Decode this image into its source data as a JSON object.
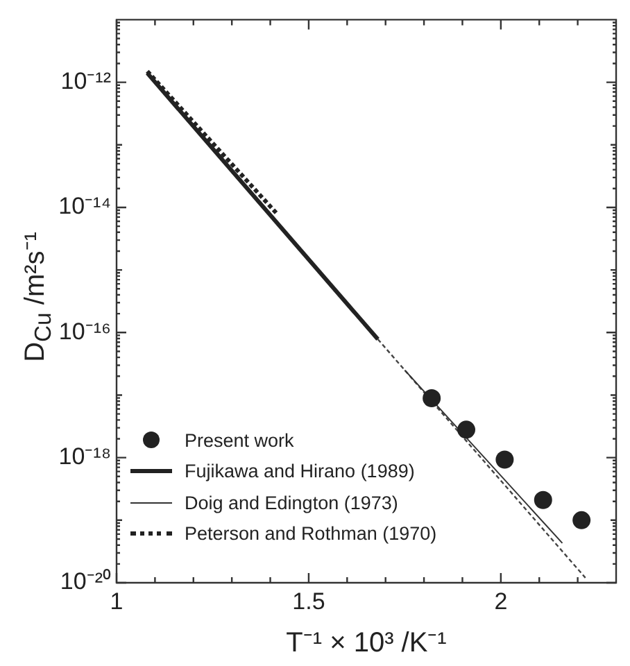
{
  "chart_data": {
    "type": "line",
    "xlabel": "T⁻¹ × 10³ /K⁻¹",
    "ylabel": "D$_{Cu}$ /m²s⁻¹",
    "log": "y",
    "xlim": [
      1,
      2.3
    ],
    "ylim": [
      1e-20,
      1e-11
    ],
    "xticks": [
      1,
      {
        "value": 1.1,
        "label": null
      },
      {
        "value": 1.2,
        "label": null
      },
      {
        "value": 1.3,
        "label": null
      },
      {
        "value": 1.4,
        "label": null
      },
      1.5,
      {
        "value": 1.6,
        "label": null
      },
      {
        "value": 1.7,
        "label": null
      },
      {
        "value": 1.8,
        "label": null
      },
      {
        "value": 1.9,
        "label": null
      },
      2,
      {
        "value": 2.1,
        "label": null
      },
      {
        "value": 2.2,
        "label": null
      }
    ],
    "yticks": [
      {
        "value": 1e-20,
        "label": "10⁻²⁰"
      },
      {
        "value": 1e-19,
        "label": null
      },
      {
        "value": 1e-18,
        "label": "10⁻¹⁸"
      },
      {
        "value": 1e-17,
        "label": null
      },
      {
        "value": 1e-16,
        "label": "10⁻¹⁶"
      },
      {
        "value": 1e-15,
        "label": null
      },
      {
        "value": 1e-14,
        "label": "10⁻¹⁴"
      },
      {
        "value": 1e-13,
        "label": null
      },
      {
        "value": 1e-12,
        "label": "10⁻¹²"
      }
    ],
    "grid": false,
    "legend": "bottom left",
    "series": [
      {
        "name": "Present work",
        "type": "scatter",
        "marker": "circle",
        "color": "#222222",
        "x": [
          1.82,
          1.91,
          2.01,
          2.11,
          2.21
        ],
        "values": [
          8.9e-18,
          2.8e-18,
          9.3e-19,
          2.1e-19,
          1e-19
        ]
      },
      {
        "name": "Fujikawa and Hirano (1989)",
        "type": "line",
        "marker": "none",
        "line_style": "solid",
        "color": "#222222",
        "x": [
          1.08,
          1.68
        ],
        "values": [
          1.4e-12,
          7.8e-17
        ]
      },
      {
        "name": "Doig and Edington (1973)",
        "type": "line",
        "marker": "none",
        "line_style": "solid",
        "color": "#333333",
        "x": [
          1.75,
          2.16
        ],
        "values": [
          2.5e-17,
          4.3e-20
        ]
      },
      {
        "name": "Peterson and Rothman (1970)",
        "type": "line",
        "marker": "none",
        "line_style": "dotted",
        "color": "#222222",
        "x": [
          1.08,
          1.42
        ],
        "values": [
          1.5e-12,
          7.6e-15
        ]
      },
      {
        "type": "line",
        "marker": "none",
        "line_style": "dotted",
        "color": "#444444",
        "x": [
          1.68,
          2.22
        ],
        "values": [
          7.8e-17,
          1.2e-20
        ]
      }
    ]
  }
}
